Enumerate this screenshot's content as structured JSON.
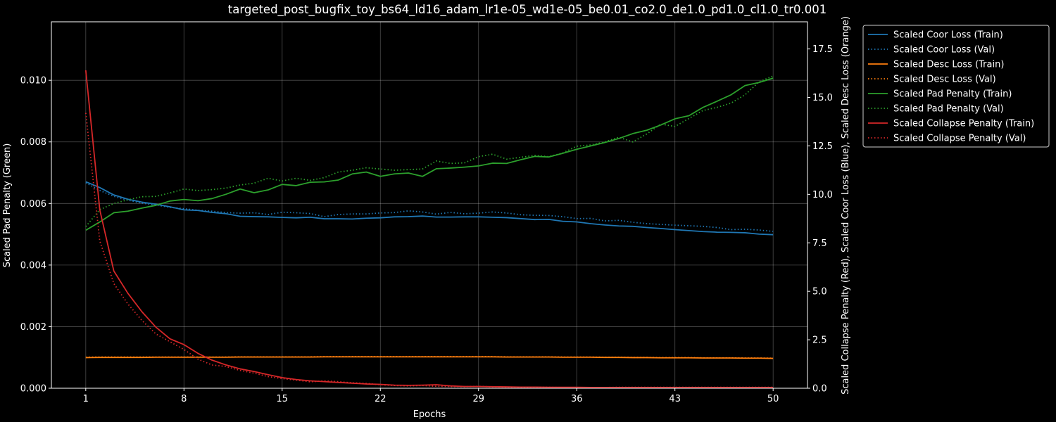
{
  "chart_data": {
    "type": "line",
    "title": "targeted_post_bugfix_toy_bs64_ld16_adam_lr1e-05_wd1e-05_be0.01_co2.0_de1.0_pd1.0_cl1.0_tr0.001",
    "xlabel": "Epochs",
    "ylabel_left": "Scaled Pad Penalty (Green)",
    "ylabel_right": "Scaled Collapse Penalty (Red), Scaled Coor Loss (Blue), Scaled Desc Loss (Orange)",
    "xlim": [
      -1.45,
      52.45
    ],
    "ylim_left": [
      0,
      0.0119
    ],
    "ylim_right": [
      0,
      18.9
    ],
    "x_ticks": [
      1,
      8,
      15,
      22,
      29,
      36,
      43,
      50
    ],
    "y_ticks_left": [
      "0.000",
      "0.002",
      "0.004",
      "0.006",
      "0.008",
      "0.010"
    ],
    "y_ticks_left_values": [
      0,
      0.002,
      0.004,
      0.006,
      0.008,
      0.01
    ],
    "y_ticks_right": [
      "0.0",
      "2.5",
      "5.0",
      "7.5",
      "10.0",
      "12.5",
      "15.0",
      "17.5"
    ],
    "y_ticks_right_values": [
      0,
      2.5,
      5.0,
      7.5,
      10.0,
      12.5,
      15.0,
      17.5
    ],
    "grid": true,
    "legend_position": "outside-right",
    "x": [
      1,
      2,
      3,
      4,
      5,
      6,
      7,
      8,
      9,
      10,
      11,
      12,
      13,
      14,
      15,
      16,
      17,
      18,
      19,
      20,
      21,
      22,
      23,
      24,
      25,
      26,
      27,
      28,
      29,
      30,
      31,
      32,
      33,
      34,
      35,
      36,
      37,
      38,
      39,
      40,
      41,
      42,
      43,
      44,
      45,
      46,
      47,
      48,
      49,
      50
    ],
    "series": [
      {
        "name": "Scaled Coor Loss (Train)",
        "axis": "right",
        "color": "#1f77b4",
        "style": "solid",
        "values": [
          10.65,
          10.35,
          9.97,
          9.75,
          9.6,
          9.49,
          9.36,
          9.2,
          9.17,
          9.07,
          9.0,
          8.87,
          8.85,
          8.84,
          8.81,
          8.79,
          8.82,
          8.74,
          8.74,
          8.73,
          8.77,
          8.79,
          8.84,
          8.85,
          8.88,
          8.83,
          8.83,
          8.84,
          8.84,
          8.82,
          8.8,
          8.75,
          8.7,
          8.71,
          8.61,
          8.58,
          8.49,
          8.42,
          8.37,
          8.35,
          8.29,
          8.24,
          8.18,
          8.13,
          8.08,
          8.05,
          8.04,
          8.02,
          7.95,
          7.92
        ]
      },
      {
        "name": "Scaled Coor Loss (Val)",
        "axis": "right",
        "color": "#1f77b4",
        "style": "dotted",
        "values": [
          10.6,
          10.2,
          9.9,
          9.7,
          9.55,
          9.45,
          9.33,
          9.26,
          9.18,
          9.13,
          9.06,
          9.03,
          9.05,
          8.96,
          9.08,
          9.05,
          9.01,
          8.85,
          8.96,
          8.99,
          8.99,
          9.04,
          9.06,
          9.15,
          9.09,
          8.98,
          9.07,
          9.0,
          9.03,
          9.09,
          9.04,
          8.95,
          8.92,
          8.91,
          8.85,
          8.75,
          8.76,
          8.63,
          8.66,
          8.56,
          8.49,
          8.45,
          8.41,
          8.38,
          8.35,
          8.29,
          8.18,
          8.2,
          8.16,
          8.09
        ]
      },
      {
        "name": "Scaled Desc Loss (Train)",
        "axis": "right",
        "color": "#ff7f0e",
        "style": "solid",
        "values": [
          1.58,
          1.59,
          1.59,
          1.59,
          1.59,
          1.6,
          1.6,
          1.6,
          1.6,
          1.6,
          1.6,
          1.61,
          1.61,
          1.61,
          1.61,
          1.61,
          1.61,
          1.62,
          1.62,
          1.62,
          1.62,
          1.62,
          1.62,
          1.62,
          1.62,
          1.62,
          1.62,
          1.62,
          1.62,
          1.62,
          1.61,
          1.61,
          1.61,
          1.61,
          1.6,
          1.6,
          1.6,
          1.59,
          1.59,
          1.58,
          1.58,
          1.57,
          1.57,
          1.57,
          1.56,
          1.56,
          1.56,
          1.55,
          1.55,
          1.54
        ]
      },
      {
        "name": "Scaled Desc Loss (Val)",
        "axis": "right",
        "color": "#ff7f0e",
        "style": "dotted",
        "values": [
          1.6,
          1.61,
          1.61,
          1.61,
          1.61,
          1.61,
          1.61,
          1.61,
          1.61,
          1.61,
          1.61,
          1.62,
          1.62,
          1.62,
          1.62,
          1.62,
          1.62,
          1.63,
          1.63,
          1.63,
          1.63,
          1.63,
          1.63,
          1.63,
          1.63,
          1.63,
          1.63,
          1.63,
          1.63,
          1.63,
          1.62,
          1.62,
          1.62,
          1.62,
          1.61,
          1.61,
          1.61,
          1.6,
          1.6,
          1.59,
          1.59,
          1.58,
          1.58,
          1.58,
          1.57,
          1.57,
          1.57,
          1.56,
          1.56,
          1.55
        ]
      },
      {
        "name": "Scaled Pad Penalty (Train)",
        "axis": "left",
        "color": "#2ca02c",
        "style": "solid",
        "values": [
          0.00513,
          0.0054,
          0.0057,
          0.00575,
          0.00585,
          0.00594,
          0.00608,
          0.00613,
          0.00609,
          0.00616,
          0.0063,
          0.00647,
          0.00635,
          0.00644,
          0.00662,
          0.00658,
          0.00669,
          0.0067,
          0.00676,
          0.00696,
          0.00702,
          0.00688,
          0.00696,
          0.00699,
          0.00688,
          0.00713,
          0.00715,
          0.00718,
          0.00722,
          0.00731,
          0.0073,
          0.00742,
          0.00753,
          0.00751,
          0.00763,
          0.00776,
          0.00787,
          0.00798,
          0.00811,
          0.00827,
          0.00838,
          0.00855,
          0.00875,
          0.00885,
          0.00912,
          0.00932,
          0.00953,
          0.00983,
          0.00993,
          0.01007
        ]
      },
      {
        "name": "Scaled Pad Penalty (Val)",
        "axis": "left",
        "color": "#2ca02c",
        "style": "dotted",
        "values": [
          0.00525,
          0.0058,
          0.006,
          0.00612,
          0.00622,
          0.00623,
          0.00634,
          0.00647,
          0.00642,
          0.00645,
          0.0065,
          0.0066,
          0.00666,
          0.00682,
          0.00673,
          0.00682,
          0.00675,
          0.00684,
          0.00702,
          0.00708,
          0.00716,
          0.00712,
          0.00708,
          0.0071,
          0.00712,
          0.00738,
          0.0073,
          0.00732,
          0.00752,
          0.0076,
          0.00744,
          0.0075,
          0.00756,
          0.00752,
          0.00764,
          0.00786,
          0.0079,
          0.008,
          0.00815,
          0.008,
          0.00826,
          0.00858,
          0.0085,
          0.00876,
          0.00902,
          0.00912,
          0.00926,
          0.00953,
          0.00995,
          0.01014
        ]
      },
      {
        "name": "Scaled Collapse Penalty (Train)",
        "axis": "right",
        "color": "#d62728",
        "style": "solid",
        "values": [
          16.4,
          9.2,
          6.05,
          4.9,
          3.95,
          3.15,
          2.55,
          2.25,
          1.8,
          1.45,
          1.2,
          1.0,
          0.86,
          0.7,
          0.55,
          0.45,
          0.38,
          0.34,
          0.3,
          0.26,
          0.22,
          0.2,
          0.16,
          0.15,
          0.16,
          0.18,
          0.12,
          0.09,
          0.09,
          0.08,
          0.07,
          0.06,
          0.06,
          0.05,
          0.05,
          0.05,
          0.04,
          0.04,
          0.04,
          0.04,
          0.04,
          0.04,
          0.04,
          0.04,
          0.04,
          0.04,
          0.04,
          0.04,
          0.04,
          0.04
        ]
      },
      {
        "name": "Scaled Collapse Penalty (Val)",
        "axis": "right",
        "color": "#d62728",
        "style": "dotted",
        "values": [
          14.2,
          7.6,
          5.4,
          4.35,
          3.5,
          2.8,
          2.4,
          2.0,
          1.5,
          1.2,
          1.12,
          0.92,
          0.78,
          0.6,
          0.5,
          0.42,
          0.33,
          0.38,
          0.34,
          0.28,
          0.25,
          0.18,
          0.14,
          0.12,
          0.14,
          0.1,
          0.09,
          0.08,
          0.1,
          0.07,
          0.06,
          0.05,
          0.05,
          0.05,
          0.04,
          0.04,
          0.04,
          0.04,
          0.05,
          0.05,
          0.05,
          0.05,
          0.05,
          0.05,
          0.05,
          0.05,
          0.05,
          0.05,
          0.05,
          0.05
        ]
      }
    ]
  }
}
